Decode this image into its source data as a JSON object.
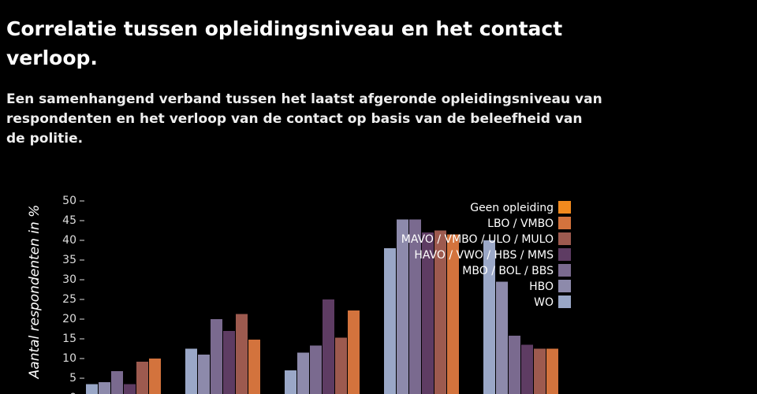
{
  "chart_data": {
    "type": "bar",
    "title": "Correlatie tussen opleidingsniveau en het contact verloop.",
    "subtitle": "Een samenhangend verband tussen het laatst afgeronde opleidingsniveau van respondenten en het verloop van de contact op basis van de beleefheid van de politie.",
    "y_label": "Aantal respondenten in %",
    "categories": [
      null,
      null,
      null,
      null,
      null
    ],
    "series": [
      {
        "name": "Geen opleiding",
        "color": "#f28a1e",
        "values": [
          null,
          null,
          null,
          null,
          null
        ]
      },
      {
        "name": "LBO / VMBO",
        "color": "#d3733d",
        "values": [
          10,
          14.8,
          22.2,
          41.5,
          12.5
        ]
      },
      {
        "name": "MAVO / VMBO / ULO / MULO",
        "color": "#9d5a4f",
        "values": [
          9.2,
          21.3,
          15.3,
          42.5,
          12.5
        ]
      },
      {
        "name": "HAVO / VWO / HBS / MMS",
        "color": "#5e3c63",
        "values": [
          3.5,
          17,
          25,
          42,
          13.5
        ]
      },
      {
        "name": "MBO / BOL / BBS",
        "color": "#7a6a8f",
        "values": [
          6.8,
          20,
          13.3,
          45.3,
          15.8
        ]
      },
      {
        "name": "HBO",
        "color": "#8d8aab",
        "values": [
          4,
          11,
          11.5,
          45.3,
          29.5
        ]
      },
      {
        "name": "WO",
        "color": "#9aa7c7",
        "values": [
          3.5,
          12.5,
          7,
          38,
          40
        ]
      }
    ],
    "ylim": [
      0,
      50
    ],
    "yticks": [
      0,
      5,
      10,
      15,
      20,
      25,
      30,
      35,
      40,
      45,
      50
    ],
    "legend": "top-right"
  }
}
